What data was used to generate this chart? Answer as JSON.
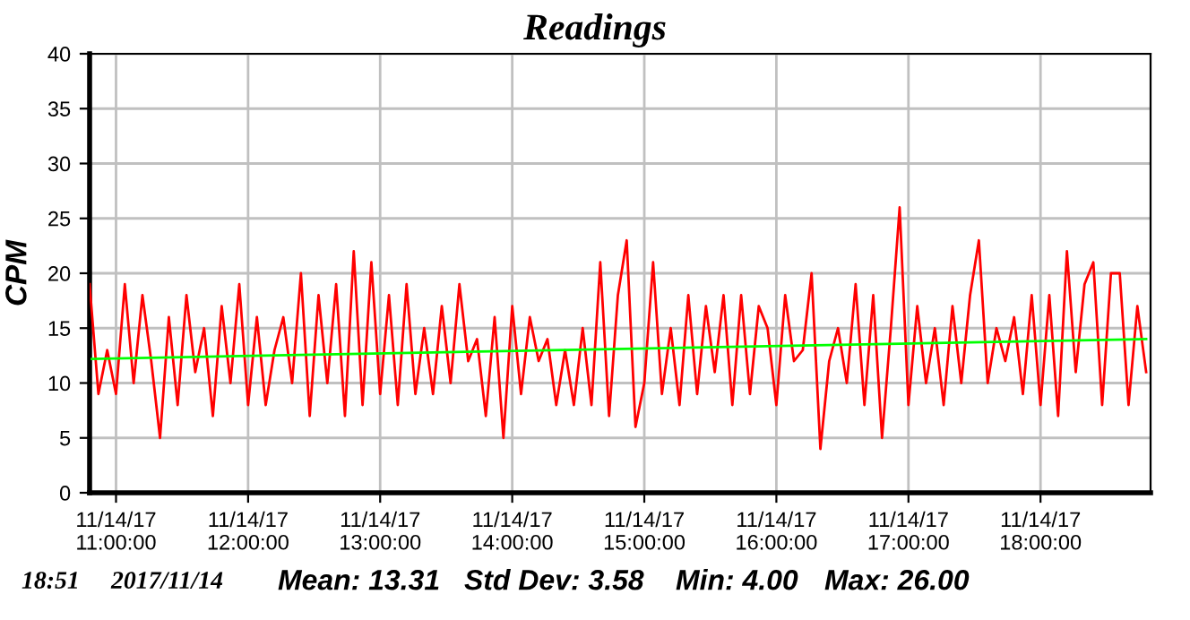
{
  "chart_data": {
    "type": "line",
    "title": "Readings",
    "ylabel": "CPM",
    "xlim": [
      "2017-11-14T10:48",
      "2017-11-14T18:50"
    ],
    "ylim": [
      0,
      40
    ],
    "xticks": [
      {
        "value": "2017-11-14T11:00",
        "label": "11/14/17\n11:00:00"
      },
      {
        "value": "2017-11-14T12:00",
        "label": "11/14/17\n12:00:00"
      },
      {
        "value": "2017-11-14T13:00",
        "label": "11/14/17\n13:00:00"
      },
      {
        "value": "2017-11-14T14:00",
        "label": "11/14/17\n14:00:00"
      },
      {
        "value": "2017-11-14T15:00",
        "label": "11/14/17\n15:00:00"
      },
      {
        "value": "2017-11-14T16:00",
        "label": "11/14/17\n16:00:00"
      },
      {
        "value": "2017-11-14T17:00",
        "label": "11/14/17\n17:00:00"
      },
      {
        "value": "2017-11-14T18:00",
        "label": "11/14/17\n18:00:00"
      }
    ],
    "yticks": [
      0,
      5,
      10,
      15,
      20,
      25,
      30,
      35,
      40
    ],
    "grid": true,
    "series": [
      {
        "color": "#ff0000",
        "x": [
          "2017-11-14T10:48",
          "2017-11-14T10:52",
          "2017-11-14T10:56",
          "2017-11-14T11:00",
          "2017-11-14T11:04",
          "2017-11-14T11:08",
          "2017-11-14T11:12",
          "2017-11-14T11:16",
          "2017-11-14T11:20",
          "2017-11-14T11:24",
          "2017-11-14T11:28",
          "2017-11-14T11:32",
          "2017-11-14T11:36",
          "2017-11-14T11:40",
          "2017-11-14T11:44",
          "2017-11-14T11:48",
          "2017-11-14T11:52",
          "2017-11-14T11:56",
          "2017-11-14T12:00",
          "2017-11-14T12:04",
          "2017-11-14T12:08",
          "2017-11-14T12:12",
          "2017-11-14T12:16",
          "2017-11-14T12:20",
          "2017-11-14T12:24",
          "2017-11-14T12:28",
          "2017-11-14T12:32",
          "2017-11-14T12:36",
          "2017-11-14T12:40",
          "2017-11-14T12:44",
          "2017-11-14T12:48",
          "2017-11-14T12:52",
          "2017-11-14T12:56",
          "2017-11-14T13:00",
          "2017-11-14T13:04",
          "2017-11-14T13:08",
          "2017-11-14T13:12",
          "2017-11-14T13:16",
          "2017-11-14T13:20",
          "2017-11-14T13:24",
          "2017-11-14T13:28",
          "2017-11-14T13:32",
          "2017-11-14T13:36",
          "2017-11-14T13:40",
          "2017-11-14T13:44",
          "2017-11-14T13:48",
          "2017-11-14T13:52",
          "2017-11-14T13:56",
          "2017-11-14T14:00",
          "2017-11-14T14:04",
          "2017-11-14T14:08",
          "2017-11-14T14:12",
          "2017-11-14T14:16",
          "2017-11-14T14:20",
          "2017-11-14T14:24",
          "2017-11-14T14:28",
          "2017-11-14T14:32",
          "2017-11-14T14:36",
          "2017-11-14T14:40",
          "2017-11-14T14:44",
          "2017-11-14T14:48",
          "2017-11-14T14:52",
          "2017-11-14T14:56",
          "2017-11-14T15:00",
          "2017-11-14T15:04",
          "2017-11-14T15:08",
          "2017-11-14T15:12",
          "2017-11-14T15:16",
          "2017-11-14T15:20",
          "2017-11-14T15:24",
          "2017-11-14T15:28",
          "2017-11-14T15:32",
          "2017-11-14T15:36",
          "2017-11-14T15:40",
          "2017-11-14T15:44",
          "2017-11-14T15:48",
          "2017-11-14T15:52",
          "2017-11-14T15:56",
          "2017-11-14T16:00",
          "2017-11-14T16:04",
          "2017-11-14T16:08",
          "2017-11-14T16:12",
          "2017-11-14T16:16",
          "2017-11-14T16:20",
          "2017-11-14T16:24",
          "2017-11-14T16:28",
          "2017-11-14T16:32",
          "2017-11-14T16:36",
          "2017-11-14T16:40",
          "2017-11-14T16:44",
          "2017-11-14T16:48",
          "2017-11-14T16:52",
          "2017-11-14T16:56",
          "2017-11-14T17:00",
          "2017-11-14T17:04",
          "2017-11-14T17:08",
          "2017-11-14T17:12",
          "2017-11-14T17:16",
          "2017-11-14T17:20",
          "2017-11-14T17:24",
          "2017-11-14T17:28",
          "2017-11-14T17:32",
          "2017-11-14T17:36",
          "2017-11-14T17:40",
          "2017-11-14T17:44",
          "2017-11-14T17:48",
          "2017-11-14T17:52",
          "2017-11-14T17:56",
          "2017-11-14T18:00",
          "2017-11-14T18:04",
          "2017-11-14T18:08",
          "2017-11-14T18:12",
          "2017-11-14T18:16",
          "2017-11-14T18:20",
          "2017-11-14T18:24",
          "2017-11-14T18:28",
          "2017-11-14T18:32",
          "2017-11-14T18:36",
          "2017-11-14T18:40",
          "2017-11-14T18:44",
          "2017-11-14T18:48"
        ],
        "values": [
          19,
          9,
          13,
          9,
          19,
          10,
          18,
          12,
          5,
          16,
          8,
          18,
          11,
          15,
          7,
          17,
          10,
          19,
          8,
          16,
          8,
          13,
          16,
          10,
          20,
          7,
          18,
          10,
          19,
          7,
          22,
          8,
          21,
          9,
          18,
          8,
          19,
          9,
          15,
          9,
          17,
          10,
          19,
          12,
          14,
          7,
          16,
          5,
          17,
          9,
          16,
          12,
          14,
          8,
          13,
          8,
          15,
          8,
          21,
          7,
          18,
          23,
          6,
          10,
          21,
          9,
          15,
          8,
          18,
          9,
          17,
          11,
          18,
          8,
          18,
          9,
          17,
          15,
          8,
          18,
          12,
          13,
          20,
          4,
          12,
          15,
          10,
          19,
          8,
          18,
          5,
          15,
          26,
          8,
          17,
          10,
          15,
          8,
          17,
          10,
          18,
          23,
          10,
          15,
          12,
          16,
          9,
          18,
          8,
          18,
          7,
          22,
          11,
          19,
          21,
          8,
          20,
          20,
          8,
          17,
          11
        ]
      },
      {
        "type": "line",
        "color": "#00ff00",
        "x": [
          "2017-11-14T10:49",
          "2017-11-14T18:48"
        ],
        "values": [
          12.2,
          14.0
        ]
      }
    ],
    "annotations": [
      "18:51",
      "2017/11/14",
      "Mean: 13.31",
      "Std Dev: 3.58",
      "Min: 4.00",
      "Max: 26.00"
    ]
  }
}
